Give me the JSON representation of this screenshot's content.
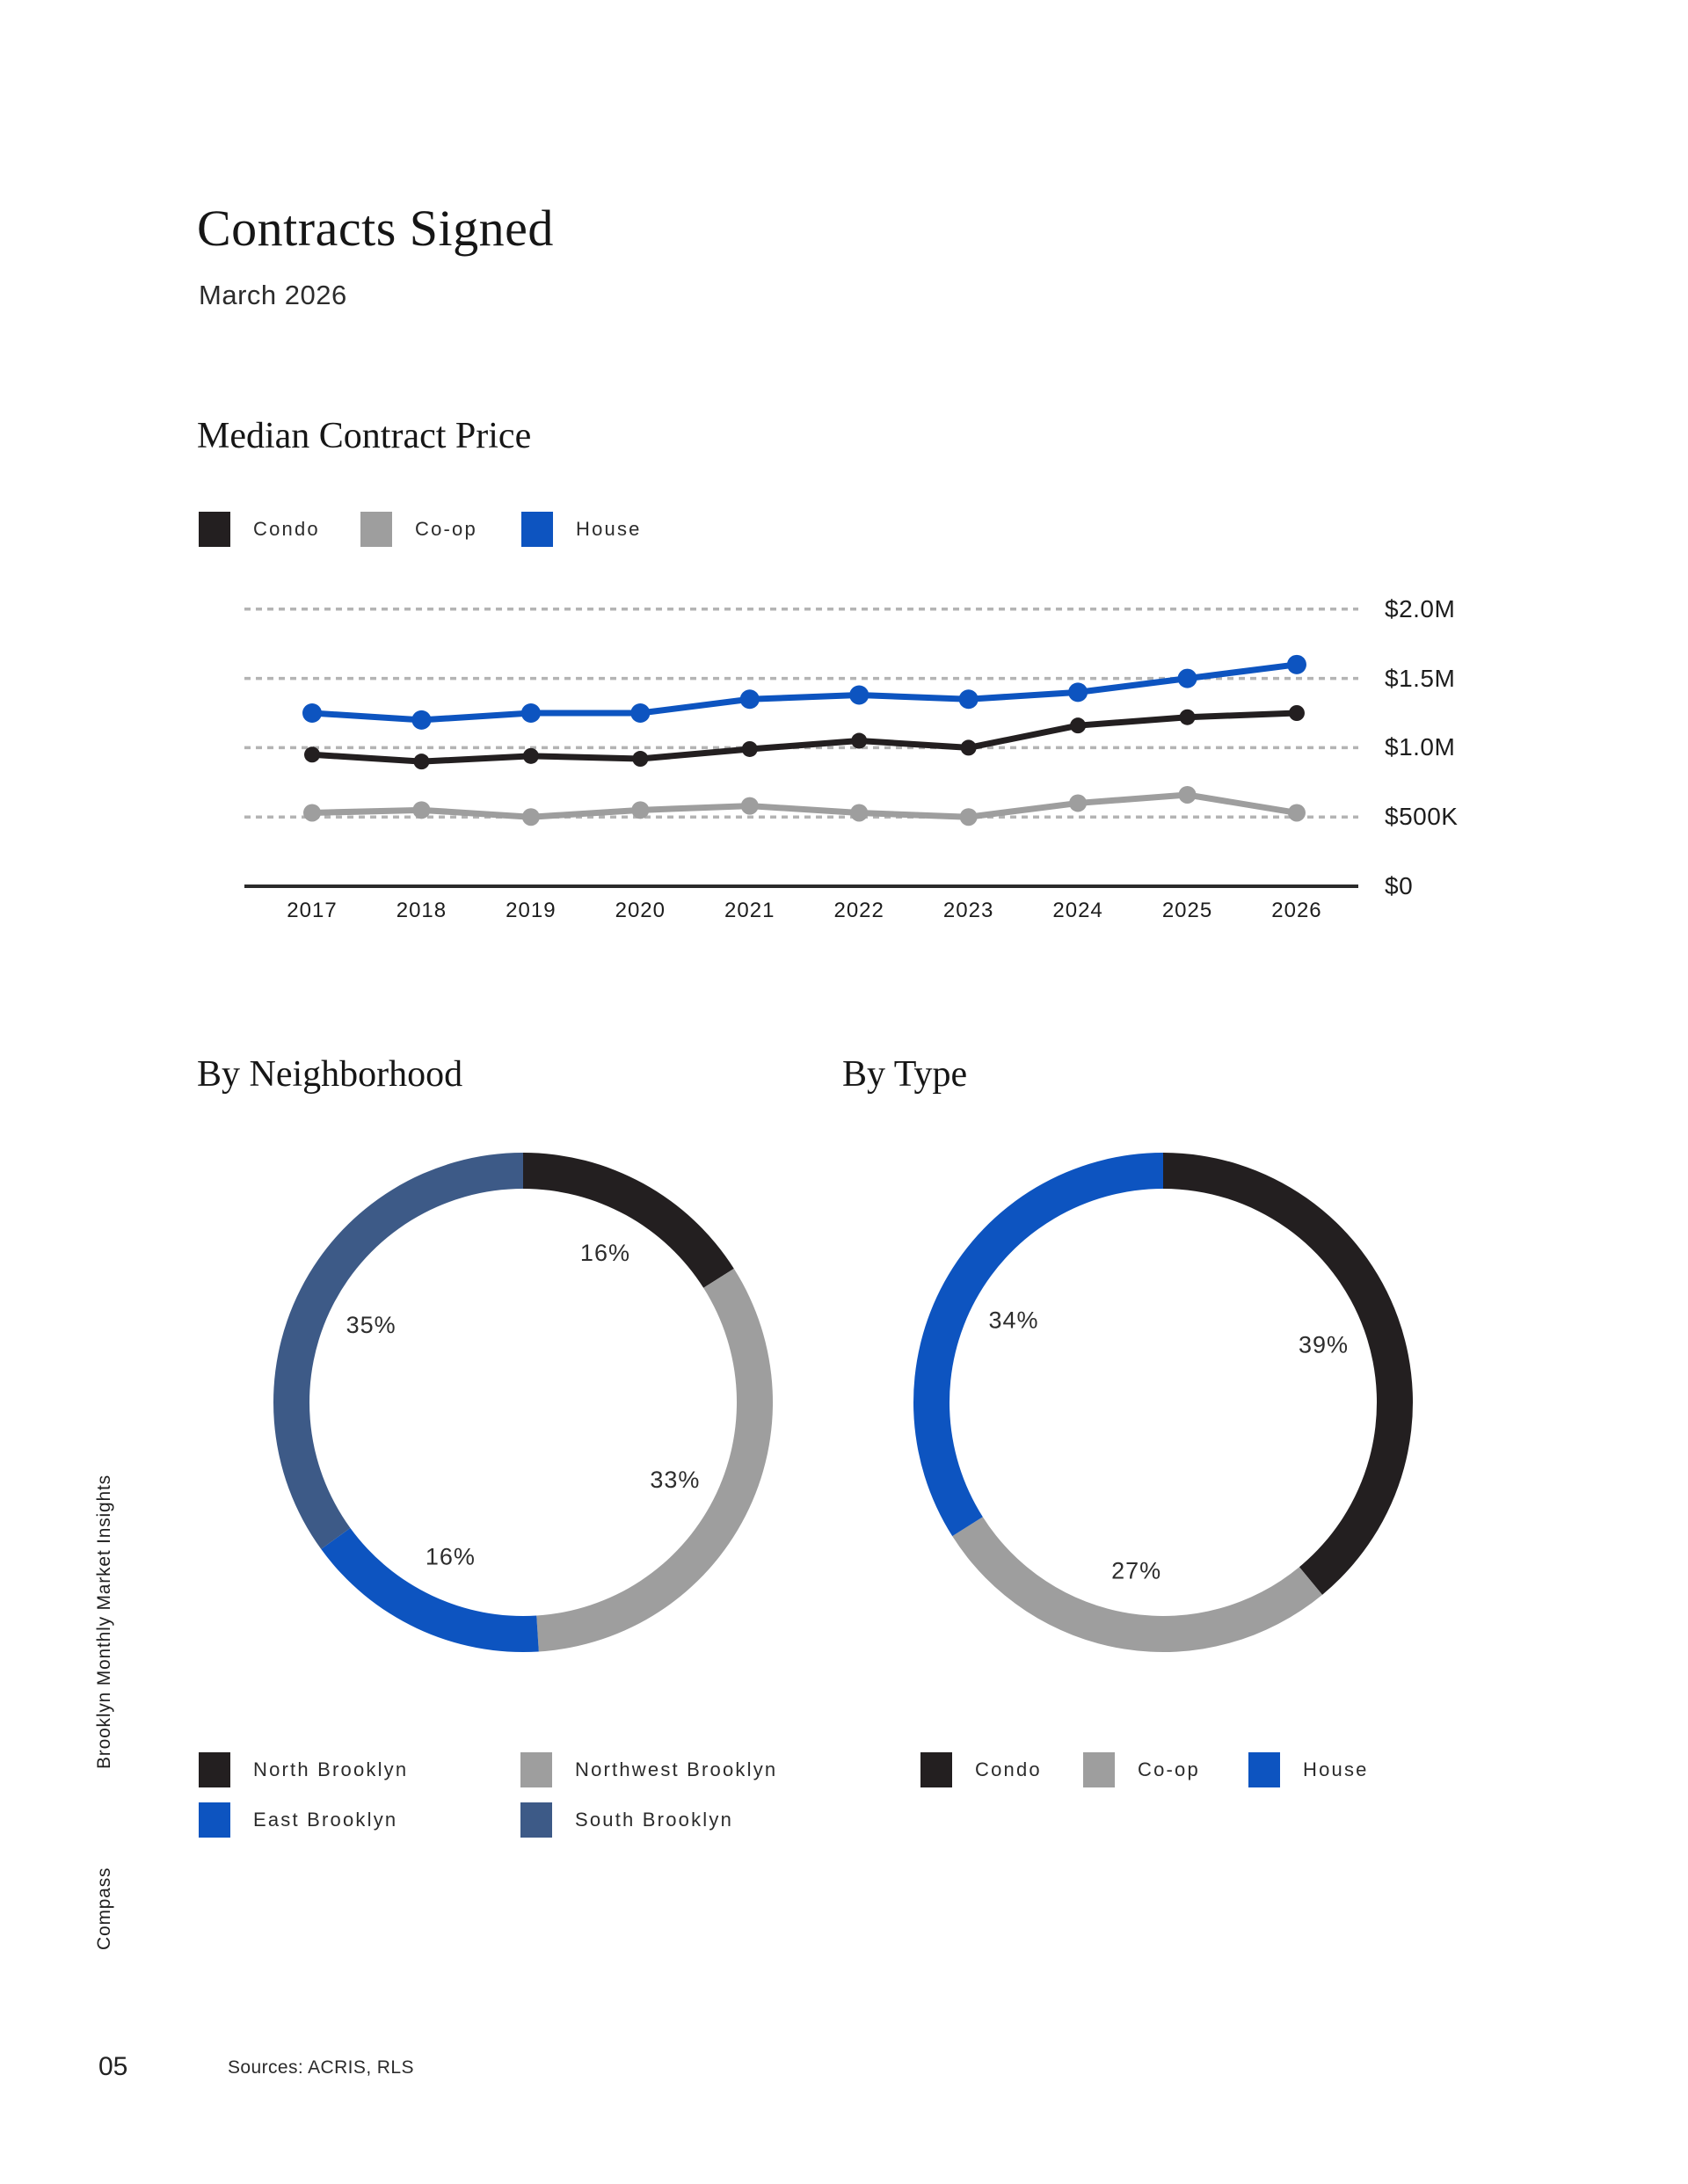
{
  "page": {
    "title": "Contracts Signed",
    "subtitle": "March 2026",
    "sidebar_top": "Brooklyn Monthly Market Insights",
    "sidebar_bottom": "Compass",
    "page_number": "05",
    "sources": "Sources: ACRIS, RLS"
  },
  "colors": {
    "black": "#231f20",
    "gray": "#9e9e9e",
    "blue": "#0d54c0",
    "slate": "#3d5a87",
    "gridline": "#b4b4b4",
    "axis": "#2b2b2b"
  },
  "chart_data": [
    {
      "type": "line",
      "title": "Median Contract Price",
      "x": [
        2017,
        2018,
        2019,
        2020,
        2021,
        2022,
        2023,
        2024,
        2025,
        2026
      ],
      "series": [
        {
          "name": "Condo",
          "color": "#231f20",
          "point_radius": 9,
          "values": [
            0.95,
            0.9,
            0.94,
            0.92,
            0.99,
            1.05,
            1.0,
            1.16,
            1.22,
            1.25
          ]
        },
        {
          "name": "Co-op",
          "color": "#9e9e9e",
          "point_radius": 10,
          "values": [
            0.53,
            0.55,
            0.5,
            0.55,
            0.58,
            0.53,
            0.5,
            0.6,
            0.66,
            0.53
          ]
        },
        {
          "name": "House",
          "color": "#0d54c0",
          "point_radius": 11,
          "values": [
            1.25,
            1.2,
            1.25,
            1.25,
            1.35,
            1.38,
            1.35,
            1.4,
            1.5,
            1.6
          ]
        }
      ],
      "unit": "$ millions",
      "ylim": [
        0,
        2.0
      ],
      "yticks": [
        {
          "value": 2.0,
          "label": "$2.0M"
        },
        {
          "value": 1.5,
          "label": "$1.5M"
        },
        {
          "value": 1.0,
          "label": "$1.0M"
        },
        {
          "value": 0.5,
          "label": "$500K"
        },
        {
          "value": 0.0,
          "label": "$0"
        }
      ],
      "grid": "horizontal-dashed",
      "legend_position": "top-left"
    },
    {
      "type": "pie",
      "subtype": "donut",
      "title": "By Neighborhood",
      "start": "top",
      "direction": "clockwise",
      "slices": [
        {
          "label": "North Brooklyn",
          "value": 16,
          "pct_label": "16%",
          "color": "#231f20"
        },
        {
          "label": "Northwest Brooklyn",
          "value": 33,
          "pct_label": "33%",
          "color": "#9e9e9e"
        },
        {
          "label": "East Brooklyn",
          "value": 16,
          "pct_label": "16%",
          "color": "#0d54c0"
        },
        {
          "label": "South Brooklyn",
          "value": 35,
          "pct_label": "35%",
          "color": "#3d5a87"
        }
      ],
      "legend_position": "bottom"
    },
    {
      "type": "pie",
      "subtype": "donut",
      "title": "By Type",
      "start": "top",
      "direction": "clockwise",
      "slices": [
        {
          "label": "Condo",
          "value": 39,
          "pct_label": "39%",
          "color": "#231f20"
        },
        {
          "label": "Co-op",
          "value": 27,
          "pct_label": "27%",
          "color": "#9e9e9e"
        },
        {
          "label": "House",
          "value": 34,
          "pct_label": "34%",
          "color": "#0d54c0"
        }
      ],
      "legend_position": "bottom"
    }
  ]
}
